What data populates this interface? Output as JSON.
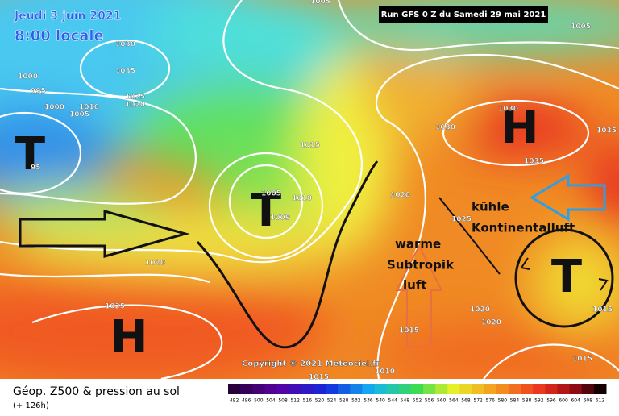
{
  "header": {
    "date": "Jeudi 3 juin 2021",
    "time": "8:00 locale",
    "run": "Run GFS 0 Z du Samedi 29 mai 2021"
  },
  "copyright": "Copyright © 2021 Meteociel.fr",
  "footer": {
    "title": "Géop. Z500 & pression au sol",
    "lead": "(+ 126h)"
  },
  "scale": {
    "labels": [
      492,
      496,
      500,
      504,
      508,
      512,
      516,
      520,
      524,
      528,
      532,
      536,
      540,
      544,
      548,
      552,
      556,
      560,
      564,
      568,
      572,
      576,
      580,
      584,
      588,
      592,
      596,
      600,
      604,
      608,
      612
    ]
  },
  "systems": [
    "T",
    "T",
    "T",
    "H",
    "H"
  ],
  "annotations": {
    "cold": [
      "kühle",
      "Kontinentalluft"
    ],
    "warm": [
      "warme",
      "Subtropik",
      "luft"
    ]
  },
  "isobars": [
    "1030",
    "1035",
    "1000",
    "995",
    "1000",
    "1005",
    "1010",
    "1025",
    "1020",
    "95",
    "1005",
    "1010",
    "1009",
    "1015",
    "1020",
    "1020",
    "1025",
    "1030",
    "1035",
    "1035",
    "1030",
    "1025",
    "1020",
    "1020",
    "1015",
    "1015",
    "1010",
    "1005",
    "1015",
    "1015",
    "1005"
  ]
}
